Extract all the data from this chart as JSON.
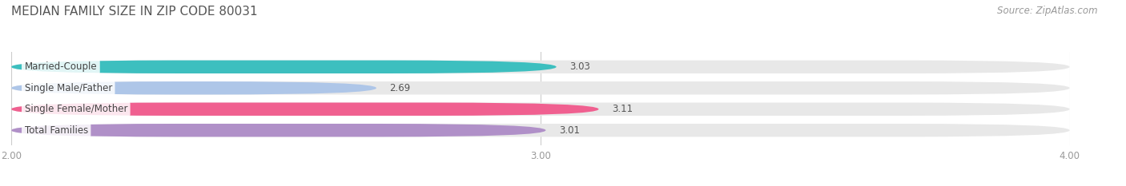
{
  "title": "MEDIAN FAMILY SIZE IN ZIP CODE 80031",
  "source": "Source: ZipAtlas.com",
  "categories": [
    "Married-Couple",
    "Single Male/Father",
    "Single Female/Mother",
    "Total Families"
  ],
  "values": [
    3.03,
    2.69,
    3.11,
    3.01
  ],
  "bar_colors": [
    "#3dbfbf",
    "#aec6e8",
    "#f06090",
    "#b090c8"
  ],
  "bar_bg_color": "#e8e8e8",
  "xlim": [
    2.0,
    4.0
  ],
  "xticks": [
    2.0,
    3.0,
    4.0
  ],
  "title_fontsize": 11,
  "label_fontsize": 8.5,
  "value_fontsize": 8.5,
  "source_fontsize": 8.5,
  "background_color": "#ffffff",
  "bar_height": 0.62,
  "grid_color": "#cccccc",
  "tick_color": "#999999",
  "title_color": "#555555",
  "value_color": "#555555",
  "label_color": "#444444"
}
